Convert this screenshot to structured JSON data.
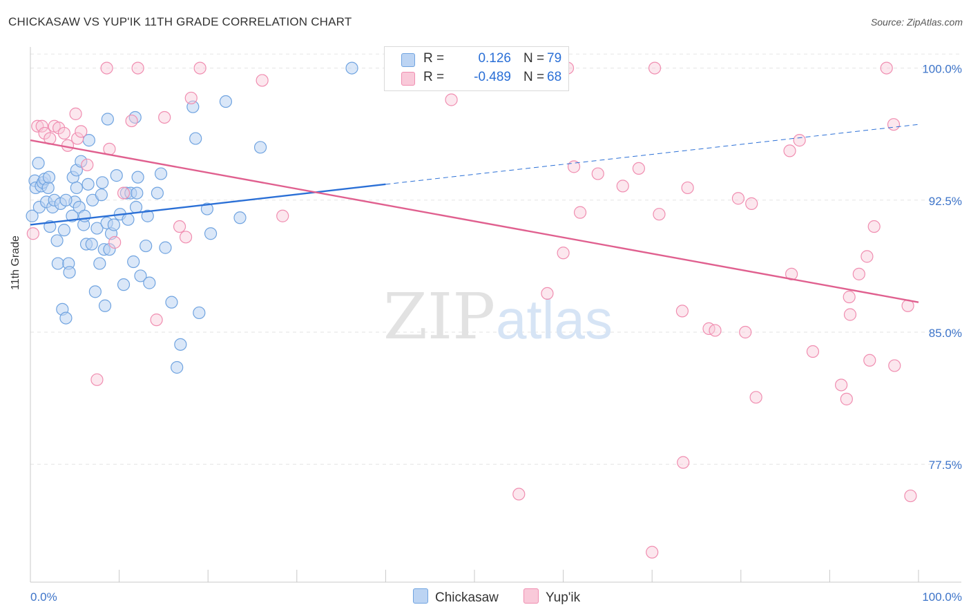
{
  "title": "CHICKASAW VS YUP'IK 11TH GRADE CORRELATION CHART",
  "source": "Source: ZipAtlas.com",
  "watermark": {
    "zip": "ZIP",
    "atlas": "atlas"
  },
  "colors": {
    "chickasaw": "#6fa3e0",
    "chickasaw_fill": "#bcd4f3",
    "yupik": "#f08db0",
    "yupik_fill": "#f9c9d9",
    "blue_line": "#2a6fd6",
    "pink_line": "#e0608f",
    "tick_label": "#3d74c9"
  },
  "legend": {
    "rows": [
      {
        "r_label": "R =",
        "r_value": "0.126",
        "n_label": "N =",
        "n_value": "79"
      },
      {
        "r_label": "R =",
        "r_value": "-0.489",
        "n_label": "N =",
        "n_value": "68"
      }
    ]
  },
  "bottom_legend": {
    "chickasaw": "Chickasaw",
    "yupik": "Yup'ik"
  },
  "chart_data": {
    "type": "scatter",
    "title": "CHICKASAW VS YUP'IK 11TH GRADE CORRELATION CHART",
    "xlabel": "",
    "ylabel": "11th Grade",
    "xlim": [
      0,
      100
    ],
    "ylim": [
      70.8,
      101.2
    ],
    "x_tick_labels": [
      "0.0%",
      "100.0%"
    ],
    "y_ticks": [
      {
        "value": 100.0,
        "label": "100.0%"
      },
      {
        "value": 92.5,
        "label": "92.5%"
      },
      {
        "value": 85.0,
        "label": "85.0%"
      },
      {
        "value": 77.5,
        "label": "77.5%"
      }
    ],
    "grid": "horizontal-dashed",
    "legend_placement": "top-center",
    "series": [
      {
        "name": "Chickasaw",
        "r": 0.126,
        "n": 79,
        "trend": {
          "x0": 0,
          "y0": 91.1,
          "x1": 40,
          "y1": 93.4,
          "dash_x1": 100,
          "dash_y1": 96.8
        },
        "points": [
          [
            0.2,
            91.6
          ],
          [
            0.5,
            93.6
          ],
          [
            0.6,
            93.2
          ],
          [
            0.9,
            94.6
          ],
          [
            1.0,
            92.1
          ],
          [
            1.2,
            93.3
          ],
          [
            1.4,
            93.5
          ],
          [
            1.6,
            93.7
          ],
          [
            1.8,
            92.4
          ],
          [
            2.0,
            93.2
          ],
          [
            2.2,
            91.0
          ],
          [
            2.5,
            92.1
          ],
          [
            2.7,
            92.5
          ],
          [
            3.0,
            90.2
          ],
          [
            3.1,
            88.9
          ],
          [
            3.4,
            92.3
          ],
          [
            3.6,
            86.3
          ],
          [
            3.8,
            90.8
          ],
          [
            4.0,
            85.8
          ],
          [
            4.3,
            88.9
          ],
          [
            4.4,
            88.4
          ],
          [
            4.7,
            91.6
          ],
          [
            4.8,
            93.8
          ],
          [
            5.0,
            92.4
          ],
          [
            5.2,
            94.2
          ],
          [
            5.5,
            92.1
          ],
          [
            5.7,
            94.7
          ],
          [
            6.0,
            91.1
          ],
          [
            6.1,
            91.6
          ],
          [
            6.3,
            90.0
          ],
          [
            6.5,
            93.4
          ],
          [
            6.6,
            95.9
          ],
          [
            6.9,
            90.0
          ],
          [
            7.0,
            92.5
          ],
          [
            7.3,
            87.3
          ],
          [
            7.5,
            90.9
          ],
          [
            7.8,
            88.9
          ],
          [
            8.0,
            92.8
          ],
          [
            8.1,
            93.5
          ],
          [
            8.3,
            89.7
          ],
          [
            8.4,
            86.5
          ],
          [
            8.6,
            91.2
          ],
          [
            8.7,
            97.1
          ],
          [
            8.9,
            89.7
          ],
          [
            9.1,
            90.6
          ],
          [
            9.4,
            91.1
          ],
          [
            9.7,
            93.9
          ],
          [
            10.1,
            91.7
          ],
          [
            10.5,
            87.7
          ],
          [
            10.8,
            92.9
          ],
          [
            11.0,
            91.4
          ],
          [
            11.3,
            92.9
          ],
          [
            11.6,
            89.0
          ],
          [
            11.8,
            97.2
          ],
          [
            11.9,
            92.1
          ],
          [
            12.1,
            93.8
          ],
          [
            12.4,
            88.2
          ],
          [
            13.0,
            89.9
          ],
          [
            13.2,
            91.6
          ],
          [
            13.4,
            87.8
          ],
          [
            14.3,
            92.9
          ],
          [
            14.7,
            94.0
          ],
          [
            15.2,
            89.8
          ],
          [
            15.9,
            86.7
          ],
          [
            16.5,
            83.0
          ],
          [
            16.9,
            84.3
          ],
          [
            18.6,
            96.0
          ],
          [
            19.0,
            86.1
          ],
          [
            18.3,
            97.8
          ],
          [
            19.9,
            92.0
          ],
          [
            20.3,
            90.6
          ],
          [
            22.0,
            98.1
          ],
          [
            23.6,
            91.5
          ],
          [
            25.9,
            95.5
          ],
          [
            36.2,
            100.0
          ],
          [
            12.0,
            92.9
          ],
          [
            5.2,
            93.2
          ],
          [
            4.0,
            92.5
          ],
          [
            2.1,
            93.8
          ]
        ]
      },
      {
        "name": "Yup'ik",
        "r": -0.489,
        "n": 68,
        "trend": {
          "x0": 0,
          "y0": 95.9,
          "x1": 100,
          "y1": 86.7
        },
        "points": [
          [
            0.3,
            90.6
          ],
          [
            0.8,
            96.7
          ],
          [
            1.3,
            96.7
          ],
          [
            1.6,
            96.3
          ],
          [
            2.2,
            96.0
          ],
          [
            2.7,
            96.7
          ],
          [
            3.2,
            96.6
          ],
          [
            3.8,
            96.3
          ],
          [
            4.2,
            95.6
          ],
          [
            5.1,
            97.4
          ],
          [
            5.3,
            96.0
          ],
          [
            5.7,
            96.4
          ],
          [
            6.4,
            94.5
          ],
          [
            7.5,
            82.3
          ],
          [
            8.6,
            100.0
          ],
          [
            8.9,
            95.4
          ],
          [
            9.5,
            90.1
          ],
          [
            10.5,
            92.9
          ],
          [
            11.4,
            97.0
          ],
          [
            12.1,
            100.0
          ],
          [
            14.2,
            85.7
          ],
          [
            15.1,
            97.2
          ],
          [
            16.8,
            91.0
          ],
          [
            17.5,
            90.4
          ],
          [
            18.1,
            98.3
          ],
          [
            19.1,
            100.0
          ],
          [
            26.1,
            99.3
          ],
          [
            28.4,
            91.6
          ],
          [
            40.7,
            100.0
          ],
          [
            47.4,
            98.2
          ],
          [
            55.0,
            75.8
          ],
          [
            58.2,
            87.2
          ],
          [
            60.0,
            89.5
          ],
          [
            60.5,
            100.0
          ],
          [
            61.2,
            94.4
          ],
          [
            61.9,
            91.8
          ],
          [
            63.9,
            94.0
          ],
          [
            66.7,
            93.3
          ],
          [
            68.5,
            94.3
          ],
          [
            70.0,
            72.5
          ],
          [
            70.3,
            100.0
          ],
          [
            70.8,
            91.7
          ],
          [
            73.4,
            86.2
          ],
          [
            73.5,
            77.6
          ],
          [
            74.0,
            93.2
          ],
          [
            76.4,
            85.2
          ],
          [
            77.1,
            85.1
          ],
          [
            79.7,
            92.6
          ],
          [
            80.5,
            85.0
          ],
          [
            81.2,
            92.3
          ],
          [
            81.7,
            81.3
          ],
          [
            85.5,
            95.3
          ],
          [
            85.7,
            88.3
          ],
          [
            86.6,
            95.9
          ],
          [
            88.1,
            83.9
          ],
          [
            91.3,
            82.0
          ],
          [
            91.9,
            81.2
          ],
          [
            92.2,
            87.0
          ],
          [
            92.3,
            86.0
          ],
          [
            93.3,
            88.3
          ],
          [
            94.2,
            89.3
          ],
          [
            94.5,
            83.4
          ],
          [
            95.0,
            91.0
          ],
          [
            96.4,
            100.0
          ],
          [
            97.2,
            96.8
          ],
          [
            98.8,
            86.5
          ],
          [
            99.1,
            75.7
          ],
          [
            97.3,
            83.1
          ]
        ]
      }
    ]
  }
}
